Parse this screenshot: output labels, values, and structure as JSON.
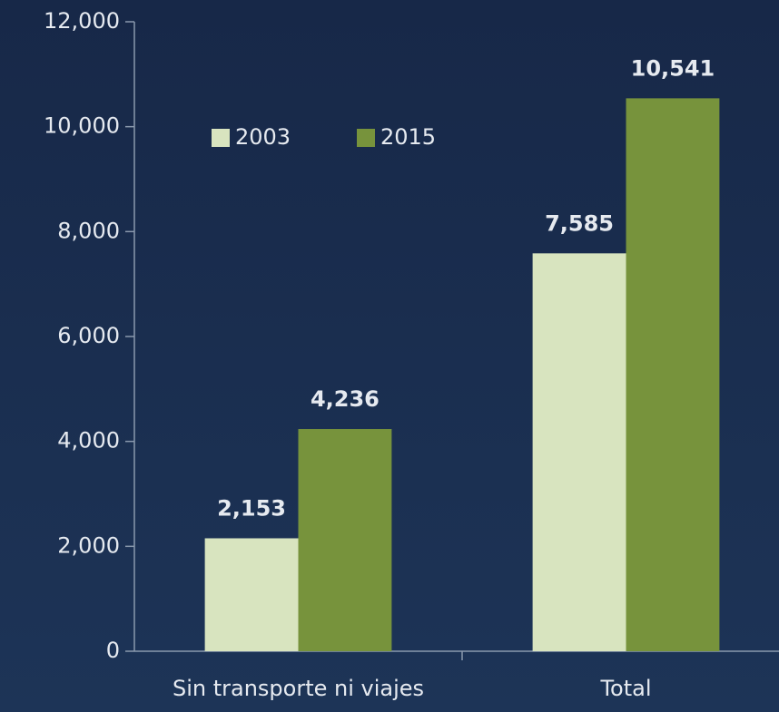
{
  "chart_data": {
    "type": "bar",
    "categories": [
      "Sin transporte ni viajes",
      "Total"
    ],
    "series": [
      {
        "name": "2003",
        "color": "#d8e4bf",
        "values": [
          2153,
          7585
        ],
        "value_labels": [
          "2,153",
          "7,585"
        ]
      },
      {
        "name": "2015",
        "color": "#77933c",
        "values": [
          4236,
          10541
        ],
        "value_labels": [
          "4,236",
          "10,541"
        ]
      }
    ],
    "ylim": [
      0,
      12000
    ],
    "yticks": [
      0,
      {
        "value": 2000,
        "label": "2,000"
      },
      {
        "value": 4000,
        "label": "4,000"
      },
      {
        "value": 6000,
        "label": "6,000"
      },
      {
        "value": 8000,
        "label": "8,000"
      },
      {
        "value": 10000,
        "label": "10,000"
      },
      {
        "value": 12000,
        "label": "12,000"
      }
    ],
    "grid": false,
    "legend": "top-left"
  }
}
